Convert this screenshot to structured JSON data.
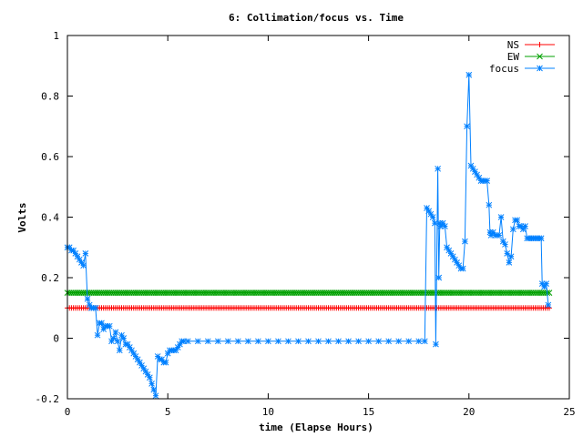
{
  "chart_data": {
    "type": "line",
    "title": "6: Collimation/focus vs. Time",
    "xlabel": "time (Elapse Hours)",
    "ylabel": "Volts",
    "xlim": [
      0,
      25
    ],
    "ylim": [
      -0.2,
      1
    ],
    "x_ticks": [
      0,
      5,
      10,
      15,
      20,
      25
    ],
    "y_ticks": [
      -0.2,
      0,
      0.2,
      0.4,
      0.6,
      0.8,
      1
    ],
    "x_tick_labels": [
      "0",
      "5",
      "10",
      "15",
      "20",
      "25"
    ],
    "y_tick_labels": [
      "-0.2",
      "0",
      "0.2",
      "0.4",
      "0.6",
      "0.8",
      "1"
    ],
    "grid": false,
    "legend_position": "top-right",
    "series": [
      {
        "name": "NS",
        "color": "#ff0000",
        "marker": "plus",
        "x_range": [
          0,
          24
        ],
        "x_step": 0.1,
        "y_constant": 0.1
      },
      {
        "name": "EW",
        "color": "#00a000",
        "marker": "cross",
        "x_range": [
          0,
          24
        ],
        "x_step": 0.1,
        "y_constant": 0.15
      },
      {
        "name": "focus",
        "color": "#0080ff",
        "marker": "star",
        "points": [
          [
            0.0,
            0.3
          ],
          [
            0.1,
            0.3
          ],
          [
            0.2,
            0.29
          ],
          [
            0.3,
            0.29
          ],
          [
            0.4,
            0.28
          ],
          [
            0.5,
            0.27
          ],
          [
            0.6,
            0.26
          ],
          [
            0.7,
            0.25
          ],
          [
            0.8,
            0.24
          ],
          [
            0.9,
            0.28
          ],
          [
            1.0,
            0.13
          ],
          [
            1.1,
            0.11
          ],
          [
            1.2,
            0.1
          ],
          [
            1.3,
            0.1
          ],
          [
            1.4,
            0.1
          ],
          [
            1.5,
            0.01
          ],
          [
            1.6,
            0.05
          ],
          [
            1.7,
            0.05
          ],
          [
            1.8,
            0.03
          ],
          [
            1.9,
            0.04
          ],
          [
            2.0,
            0.04
          ],
          [
            2.1,
            0.04
          ],
          [
            2.2,
            -0.01
          ],
          [
            2.3,
            0.0
          ],
          [
            2.4,
            0.02
          ],
          [
            2.5,
            -0.01
          ],
          [
            2.6,
            -0.04
          ],
          [
            2.7,
            0.01
          ],
          [
            2.8,
            0.0
          ],
          [
            2.9,
            -0.02
          ],
          [
            3.0,
            -0.02
          ],
          [
            3.1,
            -0.03
          ],
          [
            3.2,
            -0.04
          ],
          [
            3.3,
            -0.05
          ],
          [
            3.4,
            -0.06
          ],
          [
            3.5,
            -0.07
          ],
          [
            3.6,
            -0.08
          ],
          [
            3.7,
            -0.09
          ],
          [
            3.8,
            -0.1
          ],
          [
            3.9,
            -0.11
          ],
          [
            4.0,
            -0.12
          ],
          [
            4.1,
            -0.13
          ],
          [
            4.2,
            -0.15
          ],
          [
            4.3,
            -0.17
          ],
          [
            4.4,
            -0.19
          ],
          [
            4.5,
            -0.06
          ],
          [
            4.6,
            -0.07
          ],
          [
            4.7,
            -0.07
          ],
          [
            4.8,
            -0.08
          ],
          [
            4.9,
            -0.08
          ],
          [
            5.0,
            -0.05
          ],
          [
            5.1,
            -0.04
          ],
          [
            5.2,
            -0.04
          ],
          [
            5.3,
            -0.04
          ],
          [
            5.4,
            -0.04
          ],
          [
            5.5,
            -0.03
          ],
          [
            5.6,
            -0.02
          ],
          [
            5.7,
            -0.01
          ],
          [
            5.8,
            -0.01
          ],
          [
            6.0,
            -0.01
          ],
          [
            6.5,
            -0.01
          ],
          [
            7.0,
            -0.01
          ],
          [
            7.5,
            -0.01
          ],
          [
            8.0,
            -0.01
          ],
          [
            8.5,
            -0.01
          ],
          [
            9.0,
            -0.01
          ],
          [
            9.5,
            -0.01
          ],
          [
            10.0,
            -0.01
          ],
          [
            10.5,
            -0.01
          ],
          [
            11.0,
            -0.01
          ],
          [
            11.5,
            -0.01
          ],
          [
            12.0,
            -0.01
          ],
          [
            12.5,
            -0.01
          ],
          [
            13.0,
            -0.01
          ],
          [
            13.5,
            -0.01
          ],
          [
            14.0,
            -0.01
          ],
          [
            14.5,
            -0.01
          ],
          [
            15.0,
            -0.01
          ],
          [
            15.5,
            -0.01
          ],
          [
            16.0,
            -0.01
          ],
          [
            16.5,
            -0.01
          ],
          [
            17.0,
            -0.01
          ],
          [
            17.5,
            -0.01
          ],
          [
            17.8,
            -0.01
          ],
          [
            17.9,
            0.43
          ],
          [
            18.0,
            0.42
          ],
          [
            18.1,
            0.41
          ],
          [
            18.2,
            0.4
          ],
          [
            18.3,
            0.38
          ],
          [
            18.35,
            -0.02
          ],
          [
            18.45,
            0.56
          ],
          [
            18.5,
            0.2
          ],
          [
            18.55,
            0.38
          ],
          [
            18.6,
            0.37
          ],
          [
            18.7,
            0.38
          ],
          [
            18.8,
            0.37
          ],
          [
            18.9,
            0.3
          ],
          [
            19.0,
            0.29
          ],
          [
            19.1,
            0.28
          ],
          [
            19.2,
            0.27
          ],
          [
            19.3,
            0.26
          ],
          [
            19.4,
            0.25
          ],
          [
            19.5,
            0.24
          ],
          [
            19.6,
            0.23
          ],
          [
            19.7,
            0.23
          ],
          [
            19.8,
            0.32
          ],
          [
            19.9,
            0.7
          ],
          [
            20.0,
            0.87
          ],
          [
            20.1,
            0.57
          ],
          [
            20.2,
            0.56
          ],
          [
            20.3,
            0.55
          ],
          [
            20.4,
            0.54
          ],
          [
            20.5,
            0.53
          ],
          [
            20.6,
            0.52
          ],
          [
            20.7,
            0.52
          ],
          [
            20.8,
            0.52
          ],
          [
            20.9,
            0.52
          ],
          [
            21.0,
            0.44
          ],
          [
            21.05,
            0.35
          ],
          [
            21.1,
            0.34
          ],
          [
            21.2,
            0.35
          ],
          [
            21.3,
            0.34
          ],
          [
            21.4,
            0.34
          ],
          [
            21.5,
            0.34
          ],
          [
            21.6,
            0.4
          ],
          [
            21.7,
            0.32
          ],
          [
            21.8,
            0.31
          ],
          [
            21.9,
            0.28
          ],
          [
            22.0,
            0.25
          ],
          [
            22.1,
            0.27
          ],
          [
            22.2,
            0.36
          ],
          [
            22.3,
            0.39
          ],
          [
            22.4,
            0.39
          ],
          [
            22.5,
            0.37
          ],
          [
            22.6,
            0.37
          ],
          [
            22.7,
            0.36
          ],
          [
            22.8,
            0.37
          ],
          [
            22.9,
            0.33
          ],
          [
            23.0,
            0.33
          ],
          [
            23.1,
            0.33
          ],
          [
            23.2,
            0.33
          ],
          [
            23.3,
            0.33
          ],
          [
            23.4,
            0.33
          ],
          [
            23.5,
            0.33
          ],
          [
            23.6,
            0.33
          ],
          [
            23.65,
            0.18
          ],
          [
            23.75,
            0.17
          ],
          [
            23.85,
            0.18
          ],
          [
            23.95,
            0.11
          ]
        ]
      }
    ]
  }
}
